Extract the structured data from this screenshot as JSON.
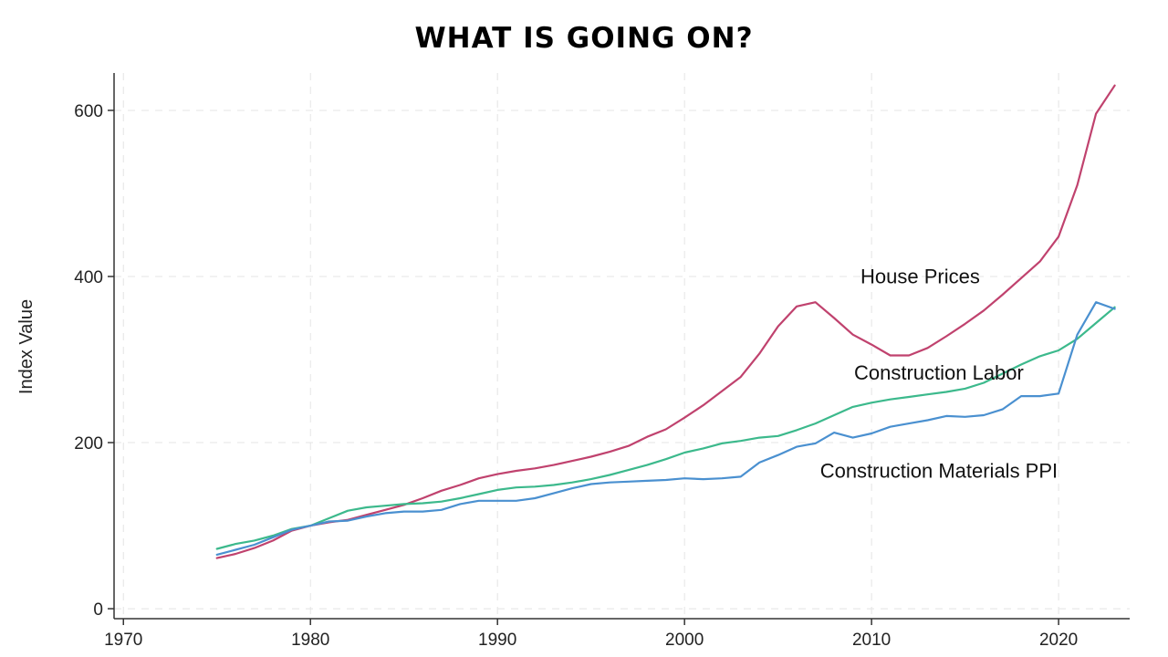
{
  "chart_data": {
    "type": "line",
    "title": "WHAT IS GOING ON?",
    "xlabel": "",
    "ylabel": "Index Value",
    "xlim": [
      1969.5,
      2023.8
    ],
    "ylim": [
      -12,
      645
    ],
    "x_ticks": [
      1970,
      1980,
      1990,
      2000,
      2010,
      2020
    ],
    "y_ticks": [
      0,
      200,
      400,
      600
    ],
    "grid": true,
    "legend": "none",
    "series": [
      {
        "name": "House Prices",
        "color": "#c0426e",
        "x": [
          1975,
          1976,
          1977,
          1978,
          1979,
          1980,
          1981,
          1982,
          1983,
          1984,
          1985,
          1986,
          1987,
          1988,
          1989,
          1990,
          1991,
          1992,
          1993,
          1994,
          1995,
          1996,
          1997,
          1998,
          1999,
          2000,
          2001,
          2002,
          2003,
          2004,
          2005,
          2006,
          2007,
          2008,
          2009,
          2010,
          2011,
          2012,
          2013,
          2014,
          2015,
          2016,
          2017,
          2018,
          2019,
          2020,
          2021,
          2022,
          2023
        ],
        "values": [
          61,
          66,
          73,
          82,
          94,
          100,
          104,
          107,
          113,
          119,
          125,
          133,
          142,
          149,
          157,
          162,
          166,
          169,
          173,
          178,
          183,
          189,
          196,
          207,
          216,
          230,
          245,
          262,
          279,
          307,
          340,
          364,
          369,
          350,
          330,
          318,
          305,
          305,
          314,
          328,
          343,
          359,
          378,
          398,
          418,
          448,
          510,
          596,
          630
        ]
      },
      {
        "name": "Construction Labor",
        "color": "#3cb98c",
        "x": [
          1975,
          1976,
          1977,
          1978,
          1979,
          1980,
          1981,
          1982,
          1983,
          1984,
          1985,
          1986,
          1987,
          1988,
          1989,
          1990,
          1991,
          1992,
          1993,
          1994,
          1995,
          1996,
          1997,
          1998,
          1999,
          2000,
          2001,
          2002,
          2003,
          2004,
          2005,
          2006,
          2007,
          2008,
          2009,
          2010,
          2011,
          2012,
          2013,
          2014,
          2015,
          2016,
          2017,
          2018,
          2019,
          2020,
          2021,
          2022,
          2023
        ],
        "values": [
          72,
          78,
          82,
          88,
          96,
          100,
          109,
          118,
          122,
          124,
          126,
          127,
          129,
          133,
          138,
          143,
          146,
          147,
          149,
          152,
          156,
          161,
          167,
          173,
          180,
          188,
          193,
          199,
          202,
          206,
          208,
          215,
          223,
          233,
          243,
          248,
          252,
          255,
          258,
          261,
          265,
          272,
          283,
          294,
          304,
          311,
          325,
          344,
          363
        ]
      },
      {
        "name": "Construction Materials PPI",
        "color": "#4a90d0",
        "x": [
          1975,
          1976,
          1977,
          1978,
          1979,
          1980,
          1981,
          1982,
          1983,
          1984,
          1985,
          1986,
          1987,
          1988,
          1989,
          1990,
          1991,
          1992,
          1993,
          1994,
          1995,
          1996,
          1997,
          1998,
          1999,
          2000,
          2001,
          2002,
          2003,
          2004,
          2005,
          2006,
          2007,
          2008,
          2009,
          2010,
          2011,
          2012,
          2013,
          2014,
          2015,
          2016,
          2017,
          2018,
          2019,
          2020,
          2021,
          2022,
          2023
        ],
        "values": [
          65,
          71,
          77,
          86,
          95,
          100,
          105,
          106,
          111,
          115,
          117,
          117,
          119,
          126,
          130,
          130,
          130,
          133,
          139,
          145,
          150,
          152,
          153,
          154,
          155,
          157,
          156,
          157,
          159,
          176,
          185,
          195,
          199,
          212,
          206,
          211,
          219,
          223,
          227,
          232,
          231,
          233,
          240,
          256,
          256,
          259,
          330,
          369,
          361
        ]
      }
    ],
    "annotations": [
      {
        "text": "House Prices",
        "x": 2012.6,
        "y": 392
      },
      {
        "text": "Construction Labor",
        "x": 2013.6,
        "y": 276
      },
      {
        "text": "Construction Materials PPI",
        "x": 2013.6,
        "y": 158
      }
    ]
  }
}
